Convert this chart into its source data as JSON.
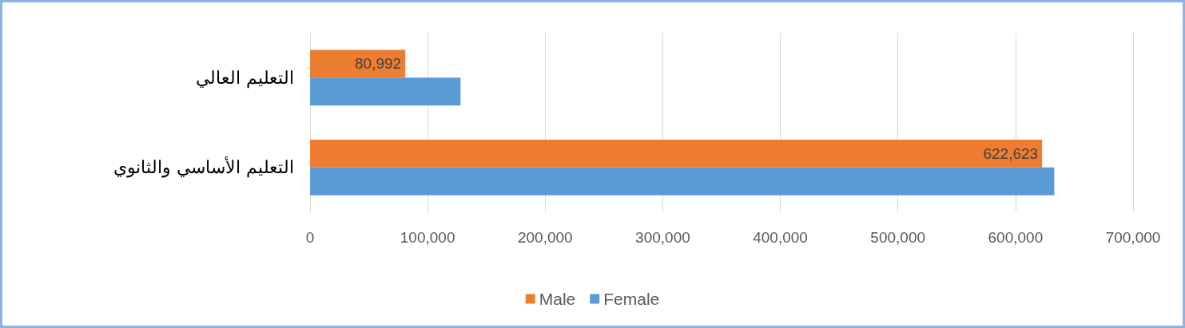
{
  "chart_data": {
    "type": "bar",
    "orientation": "horizontal",
    "categories": [
      "التعليم العالي",
      "التعليم الأساسي والثانوي"
    ],
    "series": [
      {
        "name": "Male",
        "color": "#ed7d31",
        "values": [
          80992,
          622623
        ],
        "value_labels": [
          "80,992",
          "622,623"
        ]
      },
      {
        "name": "Female",
        "color": "#5b9bd5",
        "values": [
          128000,
          633000
        ]
      }
    ],
    "xlim": [
      0,
      700000
    ],
    "xticks": [
      0,
      {
        "value": 100000,
        "label": "100,000"
      },
      {
        "value": 200000,
        "label": "200,000"
      },
      {
        "value": 300000,
        "label": "300,000"
      },
      {
        "value": 400000,
        "label": "400,000"
      },
      {
        "value": 500000,
        "label": "500,000"
      },
      {
        "value": 600000,
        "label": "600,000"
      },
      {
        "value": 700000,
        "label": "700,000"
      }
    ],
    "grid": "x",
    "legend": "bottom"
  }
}
